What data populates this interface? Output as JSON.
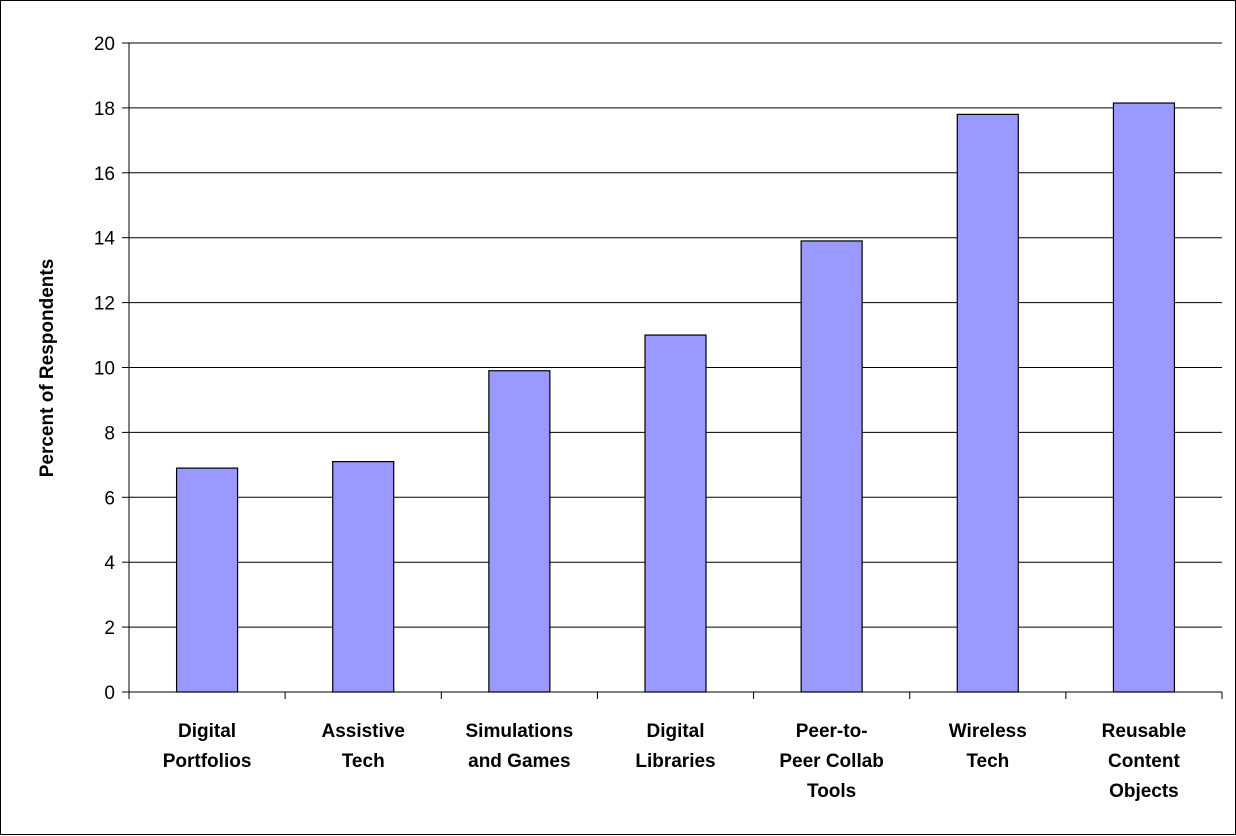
{
  "chart_data": {
    "type": "bar",
    "title": "",
    "xlabel": "",
    "ylabel": "Percent of Respondents",
    "ylim": [
      0,
      20
    ],
    "yticks": [
      0,
      2,
      4,
      6,
      8,
      10,
      12,
      14,
      16,
      18,
      20
    ],
    "grid": "horizontal",
    "legend": "none",
    "bar_color": "#9999ff",
    "bar_edge_color": "#000000",
    "categories": [
      [
        "Digital",
        "Portfolios"
      ],
      [
        "Assistive",
        "Tech"
      ],
      [
        "Simulations",
        "and Games"
      ],
      [
        "Digital",
        "Libraries"
      ],
      [
        "Peer-to-",
        "Peer Collab",
        "Tools"
      ],
      [
        "Wireless",
        "Tech"
      ],
      [
        "Reusable",
        "Content",
        "Objects"
      ]
    ],
    "values": [
      6.9,
      7.1,
      9.9,
      11.0,
      13.9,
      17.8,
      18.15
    ]
  }
}
